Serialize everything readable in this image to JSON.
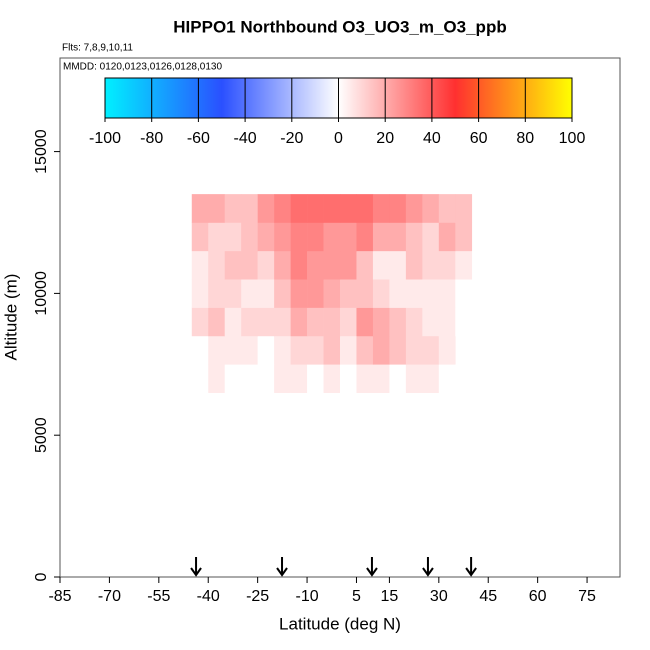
{
  "chart_data": {
    "type": "heatmap",
    "title": "HIPPO1 Northbound O3_UO3_m_O3_ppb",
    "subtitle": "Flts: 7,8,9,10,11",
    "annotation": "MMDD: 0120,0123,0126,0128,0130",
    "x_label": "Latitude (deg N)",
    "y_label": "Altitude (m)",
    "xlim": [
      -85,
      85
    ],
    "ylim": [
      0,
      18300
    ],
    "xticks": [
      -85,
      -70,
      -55,
      -40,
      -25,
      -10,
      5,
      15,
      30,
      45,
      60,
      75
    ],
    "yticks": [
      0,
      5000,
      10000,
      15000
    ],
    "x_bins": [
      -45,
      -40,
      -35,
      -30,
      -25,
      -20,
      -15,
      -10,
      -5,
      0,
      5,
      10,
      15,
      20,
      25,
      30,
      35,
      40
    ],
    "y_bins": [
      6500,
      7500,
      8500,
      9500,
      10500,
      11500,
      12500,
      13500
    ],
    "z": [
      [
        null,
        5,
        0,
        0,
        0,
        5,
        5,
        0,
        5,
        0,
        5,
        5,
        0,
        5,
        5,
        0,
        null
      ],
      [
        null,
        5,
        5,
        5,
        0,
        5,
        10,
        10,
        15,
        5,
        15,
        20,
        15,
        10,
        10,
        5,
        null
      ],
      [
        10,
        15,
        5,
        10,
        10,
        10,
        20,
        15,
        15,
        10,
        25,
        20,
        15,
        10,
        5,
        5,
        0
      ],
      [
        5,
        10,
        10,
        5,
        5,
        15,
        25,
        25,
        20,
        15,
        15,
        10,
        5,
        5,
        5,
        5,
        0
      ],
      [
        5,
        10,
        15,
        15,
        10,
        20,
        30,
        25,
        25,
        25,
        15,
        5,
        5,
        15,
        10,
        10,
        5
      ],
      [
        15,
        10,
        10,
        15,
        20,
        25,
        30,
        30,
        25,
        25,
        30,
        20,
        20,
        15,
        10,
        20,
        15
      ],
      [
        20,
        20,
        15,
        15,
        25,
        30,
        35,
        35,
        35,
        35,
        35,
        30,
        30,
        25,
        20,
        15,
        15
      ]
    ],
    "markers": [
      -43.7,
      -17.6,
      9.7,
      26.7,
      39.8
    ],
    "colorbar": {
      "lim": [
        -100,
        100
      ],
      "ticks": [
        -100,
        -80,
        -60,
        -40,
        -20,
        0,
        20,
        40,
        60,
        80,
        100
      ],
      "colors": [
        "#00f0ff",
        "#2a50ff",
        "#ffffff",
        "#ff3030",
        "#ffff00"
      ]
    }
  }
}
